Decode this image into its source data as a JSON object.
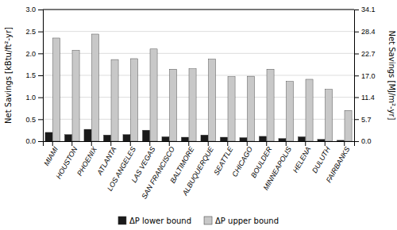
{
  "chart_data": {
    "type": "bar",
    "categories": [
      "MIAMI",
      "HOUSTON",
      "PHOENIX",
      "ATLANTA",
      "LOS ANGELES",
      "LAS VEGAS",
      "SAN FRANCISCO",
      "BALTIMORE",
      "ALBUQUERQUE",
      "SEATTLE",
      "CHICAGO",
      "BOULDER",
      "MINNEAPOLIS",
      "HELENA",
      "DULUTH",
      "FAIRBANKS"
    ],
    "series": [
      {
        "name": "ΔP lower bound",
        "color": "#1a1a1a",
        "values": [
          0.2,
          0.15,
          0.27,
          0.14,
          0.15,
          0.25,
          0.1,
          0.09,
          0.14,
          0.09,
          0.08,
          0.11,
          0.06,
          0.1,
          0.04,
          0.02
        ]
      },
      {
        "name": "ΔP upper bound",
        "color": "#c8c8c8",
        "values": [
          2.35,
          2.07,
          2.44,
          1.86,
          1.88,
          2.1,
          1.64,
          1.65,
          1.87,
          1.47,
          1.48,
          1.64,
          1.36,
          1.41,
          1.18,
          0.7
        ]
      }
    ],
    "y_label": "Net Savings [kBtu/ft²-yr]",
    "y2_label": "Net Savings [MJ/m²-yr]",
    "ylim": [
      0.0,
      3.0
    ],
    "yticks": [
      {
        "value": 0,
        "label": "0.0"
      },
      0.5,
      {
        "value": 1,
        "label": "1.0"
      },
      1.5,
      {
        "value": 2,
        "label": "2.0"
      },
      2.5,
      {
        "value": 3,
        "label": "3.0"
      }
    ],
    "y2lim": [
      0.0,
      34.1
    ],
    "y2ticks": [
      {
        "value": 0,
        "label": "0.0"
      },
      5.7,
      11.4,
      {
        "value": 17,
        "label": "17.0"
      },
      22.7,
      28.4,
      34.1
    ],
    "grid": true,
    "legend": "bottom"
  }
}
